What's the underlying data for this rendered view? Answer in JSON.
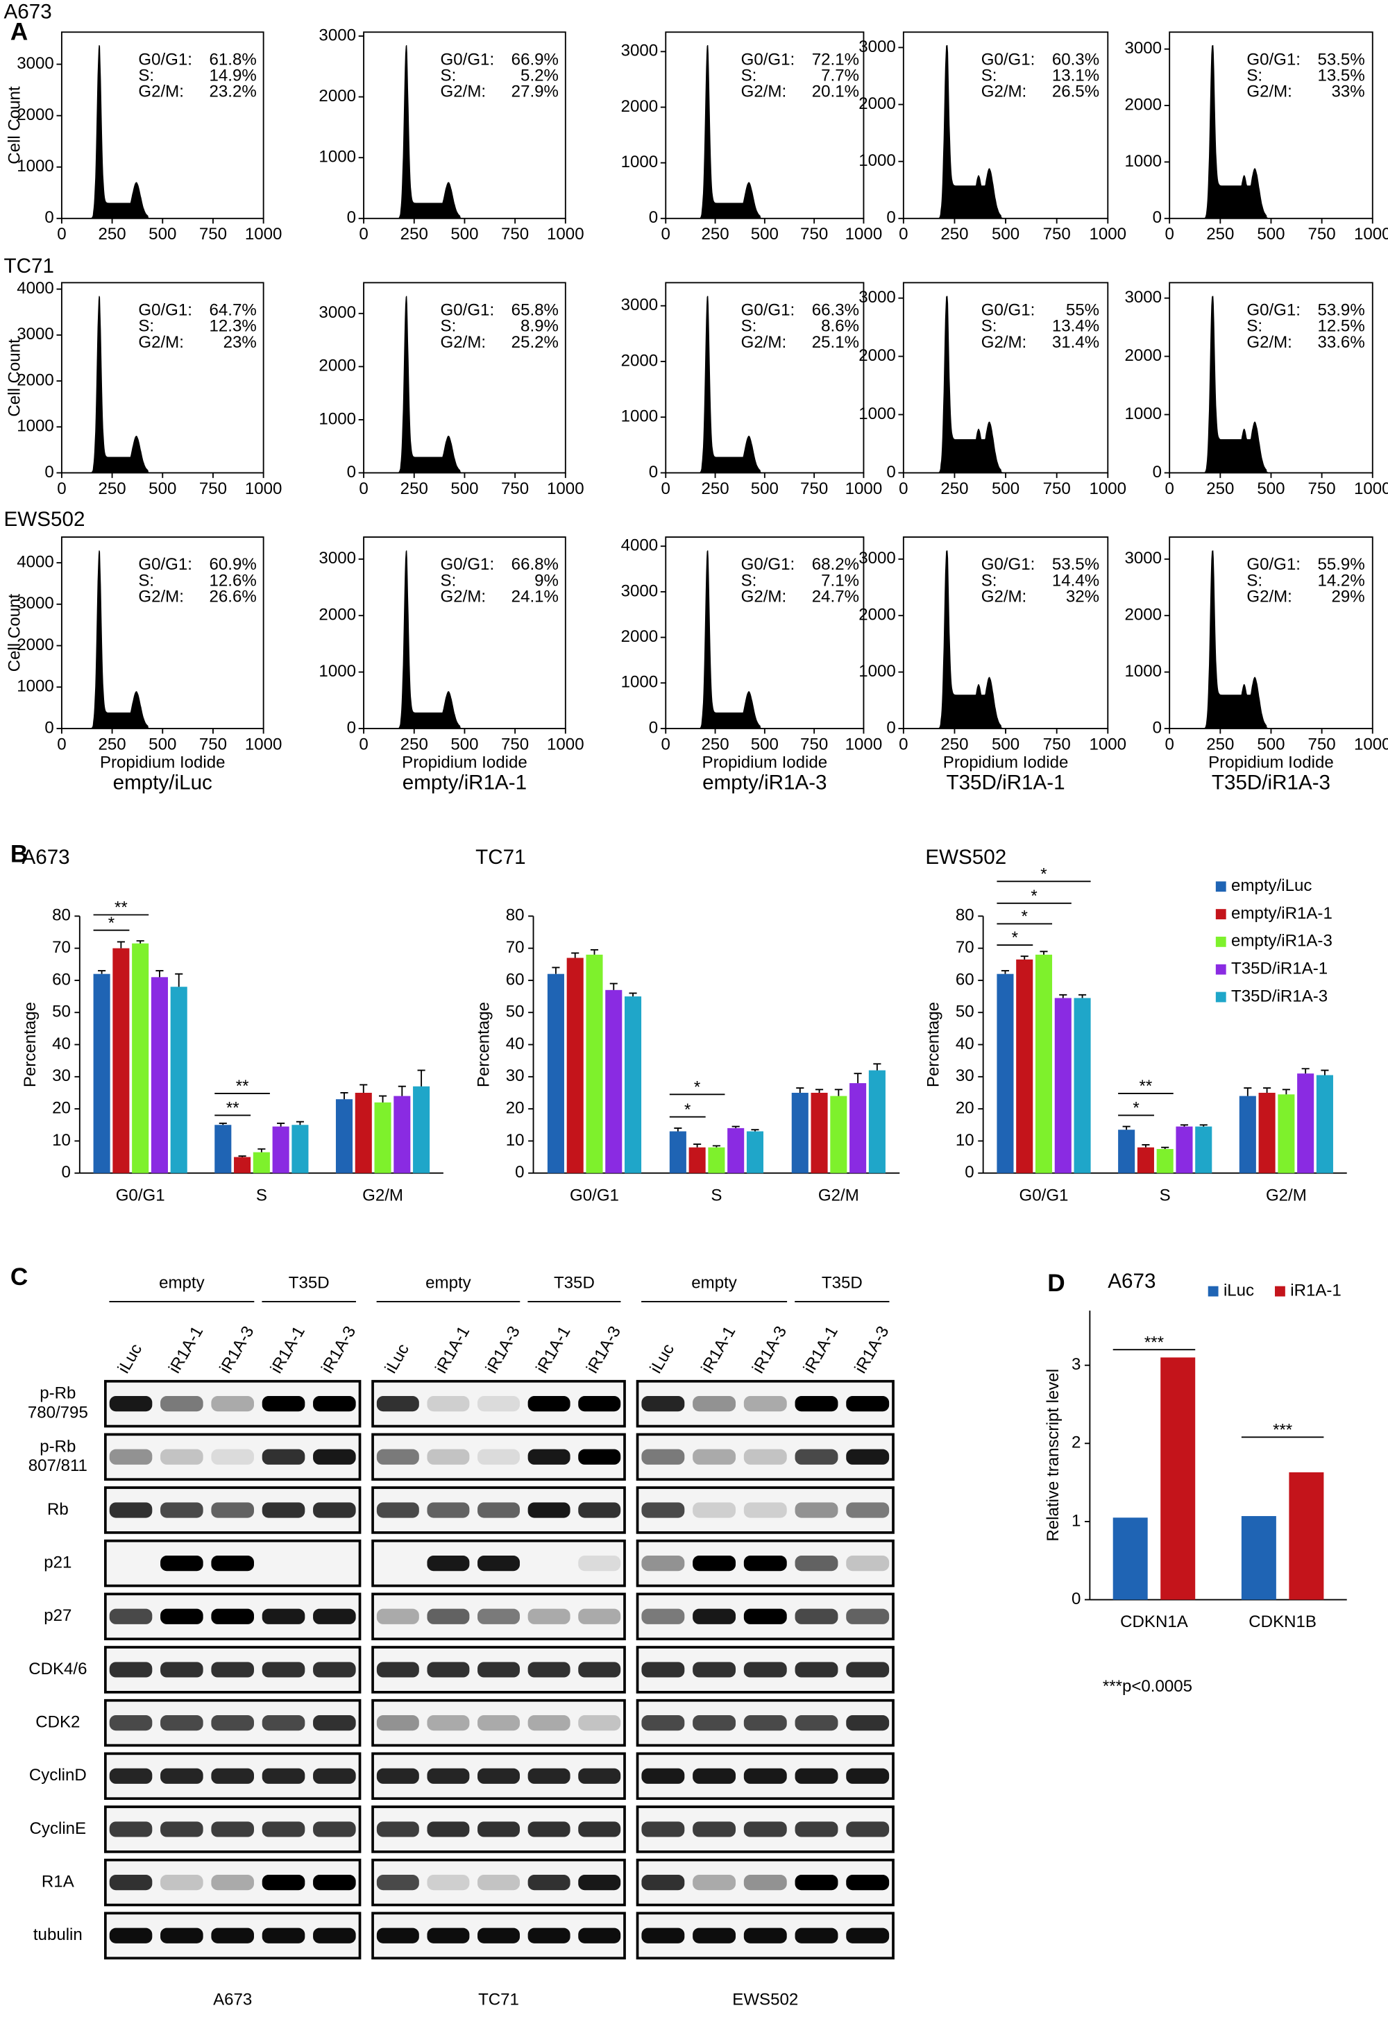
{
  "panel_a": {
    "label": "A",
    "ylabel": "Cell Count",
    "xlabel": "Propidium Iodide",
    "xlim": [
      0,
      1000
    ],
    "xticks": [
      0,
      250,
      500,
      750,
      1000
    ],
    "columns": [
      "empty/iLuc",
      "empty/iR1A-1",
      "empty/iR1A-3",
      "T35D/iR1A-1",
      "T35D/iR1A-3"
    ],
    "rows": [
      {
        "name": "A673",
        "plots": [
          {
            "ylim": [
              0,
              3625
            ],
            "yticks": [
              0,
              1000,
              2000,
              3000
            ],
            "stats": [
              {
                "label": "G0/G1:",
                "value": "61.8%"
              },
              {
                "label": "S:",
                "value": "14.9%"
              },
              {
                "label": "G2/M:",
                "value": "23.2%"
              }
            ]
          },
          {
            "ylim": [
              0,
              3065
            ],
            "yticks": [
              0,
              1000,
              2000,
              3000
            ],
            "stats": [
              {
                "label": "G0/G1:",
                "value": "66.9%"
              },
              {
                "label": "S:",
                "value": "5.2%"
              },
              {
                "label": "G2/M:",
                "value": "27.9%"
              }
            ]
          },
          {
            "ylim": [
              0,
              3350
            ],
            "yticks": [
              0,
              1000,
              2000,
              3000
            ],
            "stats": [
              {
                "label": "G0/G1:",
                "value": "72.1%"
              },
              {
                "label": "S:",
                "value": "7.7%"
              },
              {
                "label": "G2/M:",
                "value": "20.1%"
              }
            ]
          },
          {
            "ylim": [
              0,
              3270
            ],
            "yticks": [
              0,
              1000,
              2000,
              3000
            ],
            "stats": [
              {
                "label": "G0/G1:",
                "value": "60.3%"
              },
              {
                "label": "S:",
                "value": "13.1%"
              },
              {
                "label": "G2/M:",
                "value": "26.5%"
              }
            ]
          },
          {
            "ylim": [
              0,
              3300
            ],
            "yticks": [
              0,
              1000,
              2000,
              3000
            ],
            "stats": [
              {
                "label": "G0/G1:",
                "value": "53.5%"
              },
              {
                "label": "S:",
                "value": "13.5%"
              },
              {
                "label": "G2/M:",
                "value": "33%"
              }
            ]
          }
        ]
      },
      {
        "name": "TC71",
        "plots": [
          {
            "ylim": [
              0,
              4140
            ],
            "yticks": [
              0,
              1000,
              2000,
              3000,
              4000
            ],
            "stats": [
              {
                "label": "G0/G1:",
                "value": "64.7%"
              },
              {
                "label": "S:",
                "value": "12.3%"
              },
              {
                "label": "G2/M:",
                "value": "23%"
              }
            ]
          },
          {
            "ylim": [
              0,
              3580
            ],
            "yticks": [
              0,
              1000,
              2000,
              3000
            ],
            "stats": [
              {
                "label": "G0/G1:",
                "value": "65.8%"
              },
              {
                "label": "S:",
                "value": "8.9%"
              },
              {
                "label": "G2/M:",
                "value": "25.2%"
              }
            ]
          },
          {
            "ylim": [
              0,
              3415
            ],
            "yticks": [
              0,
              1000,
              2000,
              3000
            ],
            "stats": [
              {
                "label": "G0/G1:",
                "value": "66.3%"
              },
              {
                "label": "S:",
                "value": "8.6%"
              },
              {
                "label": "G2/M:",
                "value": "25.1%"
              }
            ]
          },
          {
            "ylim": [
              0,
              3265
            ],
            "yticks": [
              0,
              1000,
              2000,
              3000
            ],
            "stats": [
              {
                "label": "G0/G1:",
                "value": "55%"
              },
              {
                "label": "S:",
                "value": "13.4%"
              },
              {
                "label": "G2/M:",
                "value": "31.4%"
              }
            ]
          },
          {
            "ylim": [
              0,
              3265
            ],
            "yticks": [
              0,
              1000,
              2000,
              3000
            ],
            "stats": [
              {
                "label": "G0/G1:",
                "value": "53.9%"
              },
              {
                "label": "S:",
                "value": "12.5%"
              },
              {
                "label": "G2/M:",
                "value": "33.6%"
              }
            ]
          }
        ]
      },
      {
        "name": "EWS502",
        "plots": [
          {
            "ylim": [
              0,
              4620
            ],
            "yticks": [
              0,
              1000,
              2000,
              3000,
              4000
            ],
            "stats": [
              {
                "label": "G0/G1:",
                "value": "60.9%"
              },
              {
                "label": "S:",
                "value": "12.6%"
              },
              {
                "label": "G2/M:",
                "value": "26.6%"
              }
            ]
          },
          {
            "ylim": [
              0,
              3390
            ],
            "yticks": [
              0,
              1000,
              2000,
              3000
            ],
            "stats": [
              {
                "label": "G0/G1:",
                "value": "66.8%"
              },
              {
                "label": "S:",
                "value": "9%"
              },
              {
                "label": "G2/M:",
                "value": "24.1%"
              }
            ]
          },
          {
            "ylim": [
              0,
              4200
            ],
            "yticks": [
              0,
              1000,
              2000,
              3000,
              4000
            ],
            "stats": [
              {
                "label": "G0/G1:",
                "value": "68.2%"
              },
              {
                "label": "S:",
                "value": "7.1%"
              },
              {
                "label": "G2/M:",
                "value": "24.7%"
              }
            ]
          },
          {
            "ylim": [
              0,
              3390
            ],
            "yticks": [
              0,
              1000,
              2000,
              3000
            ],
            "stats": [
              {
                "label": "G0/G1:",
                "value": "53.5%"
              },
              {
                "label": "S:",
                "value": "14.4%"
              },
              {
                "label": "G2/M:",
                "value": "32%"
              }
            ]
          },
          {
            "ylim": [
              0,
              3390
            ],
            "yticks": [
              0,
              1000,
              2000,
              3000
            ],
            "stats": [
              {
                "label": "G0/G1:",
                "value": "55.9%"
              },
              {
                "label": "S:",
                "value": "14.2%"
              },
              {
                "label": "G2/M:",
                "value": "29%"
              }
            ]
          }
        ]
      }
    ]
  },
  "panel_b": {
    "label": "B",
    "charts": [
      {
        "type": "bar",
        "title": "A673",
        "ylabel": "Percentage",
        "categories": [
          "G0/G1",
          "S",
          "G2/M"
        ],
        "ylim": [
          0,
          80
        ],
        "yticks": [
          0,
          10,
          20,
          30,
          40,
          50,
          60,
          70,
          80
        ],
        "series": [
          {
            "name": "empty/iLuc",
            "color": "#1f64b4",
            "values": [
              62,
              15,
              23
            ],
            "errors": [
              1,
              0.5,
              2
            ]
          },
          {
            "name": "empty/iR1A-1",
            "color": "#c4141b",
            "values": [
              70,
              5,
              25
            ],
            "errors": [
              2,
              0.3,
              2.5
            ]
          },
          {
            "name": "empty/iR1A-3",
            "color": "#7ef12c",
            "values": [
              71.5,
              6.5,
              22
            ],
            "errors": [
              0.8,
              1,
              2
            ]
          },
          {
            "name": "T35D/iR1A-1",
            "color": "#8a2be2",
            "values": [
              61,
              14.5,
              24
            ],
            "errors": [
              2,
              1,
              3
            ]
          },
          {
            "name": "T35D/iR1A-3",
            "color": "#1fa6c9",
            "values": [
              58,
              15,
              27
            ],
            "errors": [
              4,
              1,
              5
            ]
          }
        ],
        "annotations": [
          "**",
          "*",
          "**",
          "**"
        ]
      },
      {
        "type": "bar",
        "title": "TC71",
        "ylabel": "Percentage",
        "categories": [
          "G0/G1",
          "S",
          "G2/M"
        ],
        "ylim": [
          0,
          80
        ],
        "yticks": [
          0,
          10,
          20,
          30,
          40,
          50,
          60,
          70,
          80
        ],
        "series": [
          {
            "name": "empty/iLuc",
            "color": "#1f64b4",
            "values": [
              62,
              13,
              25
            ],
            "errors": [
              2,
              1,
              1.5
            ]
          },
          {
            "name": "empty/iR1A-1",
            "color": "#c4141b",
            "values": [
              67,
              8,
              25
            ],
            "errors": [
              1.5,
              1,
              1
            ]
          },
          {
            "name": "empty/iR1A-3",
            "color": "#7ef12c",
            "values": [
              68,
              8,
              24
            ],
            "errors": [
              1.5,
              0.5,
              2
            ]
          },
          {
            "name": "T35D/iR1A-1",
            "color": "#8a2be2",
            "values": [
              57,
              14,
              28
            ],
            "errors": [
              2,
              0.5,
              3
            ]
          },
          {
            "name": "T35D/iR1A-3",
            "color": "#1fa6c9",
            "values": [
              55,
              13,
              32
            ],
            "errors": [
              1,
              0.5,
              2
            ]
          }
        ],
        "annotations": [
          "*",
          "*"
        ]
      },
      {
        "type": "bar",
        "title": "EWS502",
        "ylabel": "Percentage",
        "categories": [
          "G0/G1",
          "S",
          "G2/M"
        ],
        "ylim": [
          0,
          80
        ],
        "yticks": [
          0,
          10,
          20,
          30,
          40,
          50,
          60,
          70,
          80
        ],
        "series": [
          {
            "name": "empty/iLuc",
            "color": "#1f64b4",
            "values": [
              62,
              13.5,
              24
            ],
            "errors": [
              1,
              1,
              2.5
            ]
          },
          {
            "name": "empty/iR1A-1",
            "color": "#c4141b",
            "values": [
              66.5,
              8,
              25
            ],
            "errors": [
              1,
              0.8,
              1.5
            ]
          },
          {
            "name": "empty/iR1A-3",
            "color": "#7ef12c",
            "values": [
              68,
              7.5,
              24.5
            ],
            "errors": [
              1,
              0.5,
              1.5
            ]
          },
          {
            "name": "T35D/iR1A-1",
            "color": "#8a2be2",
            "values": [
              54.5,
              14.5,
              31
            ],
            "errors": [
              1,
              0.5,
              1.5
            ]
          },
          {
            "name": "T35D/iR1A-3",
            "color": "#1fa6c9",
            "values": [
              54.5,
              14.5,
              30.5
            ],
            "errors": [
              1,
              0.5,
              1.5
            ]
          }
        ],
        "annotations": [
          "*",
          "*",
          "*",
          "*",
          "**",
          "*"
        ]
      }
    ]
  },
  "panel_c": {
    "label": "C",
    "groups": [
      "empty",
      "T35D"
    ],
    "lanes": [
      "iLuc",
      "iR1A-1",
      "iR1A-3",
      "iR1A-1",
      "iR1A-3"
    ],
    "cell_lines": [
      "A673",
      "TC71",
      "EWS502"
    ],
    "proteins": [
      [
        "p-Rb",
        "780/795"
      ],
      [
        "p-Rb",
        "807/811"
      ],
      [
        "Rb"
      ],
      [
        "p21"
      ],
      [
        "p27"
      ],
      [
        "CDK4/6"
      ],
      [
        "CDK2"
      ],
      [
        "CyclinD"
      ],
      [
        "CyclinE"
      ],
      [
        "R1A"
      ],
      [
        "tubulin"
      ]
    ]
  },
  "panel_d": {
    "label": "D",
    "chart": {
      "type": "bar",
      "title": "A673",
      "ylabel": "Relative transcript level",
      "categories": [
        "CDKN1A",
        "CDKN1B"
      ],
      "ylim": [
        0,
        3.7
      ],
      "yticks": [
        0,
        1,
        2,
        3
      ],
      "series": [
        {
          "name": "iLuc",
          "color": "#1f64b4",
          "values": [
            1.05,
            1.07
          ]
        },
        {
          "name": "iR1A-1",
          "color": "#c4141b",
          "values": [
            3.1,
            1.63
          ]
        }
      ],
      "annotations": [
        "***",
        "***"
      ],
      "footnote": "***p<0.0005"
    }
  }
}
